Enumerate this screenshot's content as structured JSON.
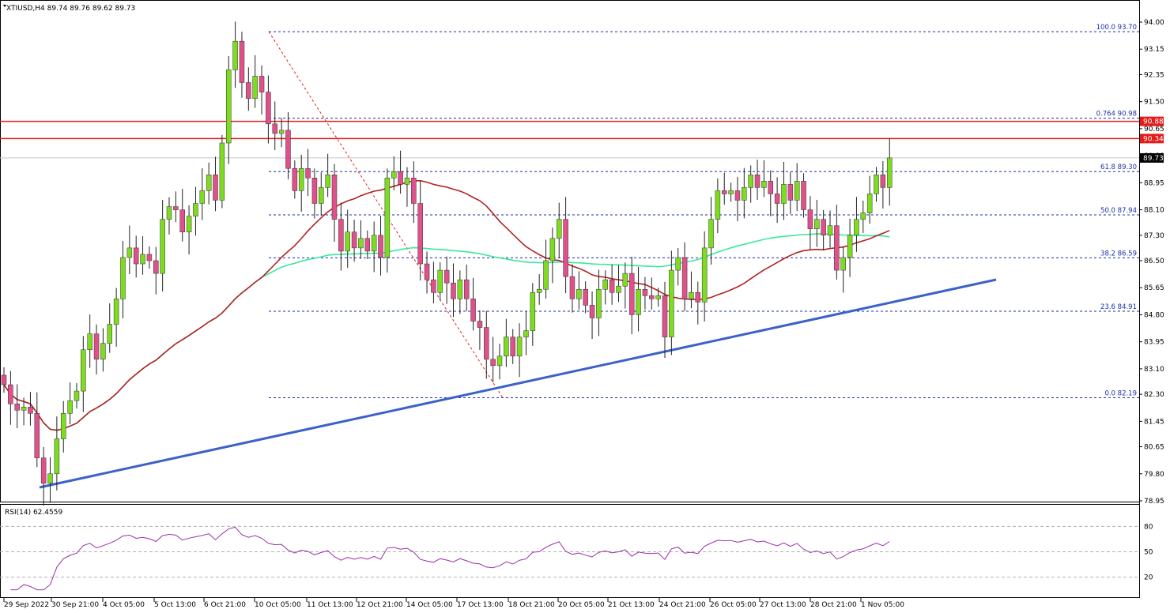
{
  "header": {
    "symbol_line": "XTIUSD,H4  89.74 89.76 89.62 89.73",
    "indicator_label": "RSI(14) 62.4559"
  },
  "colors": {
    "bull": "#7ddc1f",
    "bear": "#e0508a",
    "ma_fast": "#b22222",
    "ma_slow": "#3ce89a",
    "trendline": "#3a62c8",
    "resistance": "#e31b1b",
    "fib": "#1a2fa8",
    "rsi": "#9c2ea8"
  },
  "chart_data": [
    {
      "type": "candlestick",
      "symbol": "XTIUSD",
      "timeframe": "H4",
      "ylim": [
        78.95,
        94.0
      ],
      "y_ticks": [
        "94.00",
        "93.15",
        "92.35",
        "91.50",
        "90.65",
        "89.80",
        "88.95",
        "88.10",
        "87.30",
        "86.50",
        "85.65",
        "84.80",
        "83.95",
        "83.10",
        "82.30",
        "81.45",
        "80.65",
        "79.80",
        "78.95"
      ],
      "x_ticks": [
        "29 Sep 2022",
        "30 Sep 21:00",
        "4 Oct 05:00",
        "5 Oct 13:00",
        "6 Oct 21:00",
        "10 Oct 05:00",
        "11 Oct 13:00",
        "12 Oct 21:00",
        "14 Oct 05:00",
        "17 Oct 13:00",
        "18 Oct 21:00",
        "20 Oct 05:00",
        "21 Oct 13:00",
        "24 Oct 21:00",
        "26 Oct 05:00",
        "27 Oct 13:00",
        "28 Oct 21:00",
        "1 Nov 05:00"
      ],
      "closes": [
        82.6,
        82.0,
        81.8,
        81.9,
        81.7,
        80.3,
        79.5,
        79.8,
        80.9,
        81.7,
        82.1,
        82.4,
        83.7,
        84.2,
        83.4,
        83.9,
        84.5,
        85.3,
        86.6,
        86.9,
        86.4,
        86.7,
        86.5,
        86.1,
        87.8,
        88.2,
        88.1,
        87.4,
        87.9,
        88.3,
        88.7,
        89.2,
        88.4,
        90.2,
        92.5,
        93.4,
        92.1,
        91.6,
        92.3,
        91.8,
        90.8,
        90.5,
        90.6,
        89.4,
        88.7,
        89.4,
        89.1,
        88.3,
        88.8,
        89.2,
        87.8,
        86.8,
        87.4,
        86.9,
        87.2,
        86.8,
        87.3,
        86.6,
        89.1,
        89.3,
        88.9,
        89.1,
        88.3,
        86.4,
        85.9,
        85.5,
        86.2,
        85.8,
        85.3,
        85.9,
        85.3,
        84.6,
        84.4,
        83.4,
        83.2,
        83.5,
        84.1,
        83.5,
        84.1,
        84.3,
        85.5,
        85.6,
        86.5,
        87.2,
        87.8,
        86.0,
        85.3,
        85.6,
        85.1,
        84.7,
        85.6,
        85.9,
        85.5,
        85.7,
        86.1,
        84.8,
        85.6,
        85.4,
        85.3,
        85.4,
        84.1,
        86.2,
        86.6,
        85.3,
        85.5,
        85.2,
        86.9,
        87.8,
        88.7,
        88.6,
        88.7,
        88.4,
        88.8,
        89.2,
        88.8,
        89.0,
        88.6,
        88.3,
        88.9,
        88.4,
        89.0,
        88.1,
        87.5,
        87.8,
        87.3,
        87.6,
        86.2,
        86.6,
        87.3,
        87.8,
        88.0,
        88.6,
        89.2,
        88.8,
        89.73
      ],
      "fib_levels": [
        {
          "ratio": "100.0",
          "price": "93.70",
          "value": 93.7
        },
        {
          "ratio": "0.764",
          "price": "90.98",
          "value": 90.98
        },
        {
          "ratio": "61.8",
          "price": "89.30",
          "value": 89.3
        },
        {
          "ratio": "50.0",
          "price": "87.94",
          "value": 87.94
        },
        {
          "ratio": "38.2",
          "price": "86.59",
          "value": 86.59
        },
        {
          "ratio": "23.6",
          "price": "84.91",
          "value": 84.91
        },
        {
          "ratio": "0.0",
          "price": "82.19",
          "value": 82.19
        }
      ],
      "resistance_levels": [
        90.88,
        90.34
      ],
      "price_labels": [
        {
          "text": "90.88",
          "value": 90.88,
          "style": "red"
        },
        {
          "text": "90.34",
          "value": 90.34,
          "style": "red"
        },
        {
          "text": "89.73",
          "value": 89.73,
          "style": "black"
        }
      ],
      "current_price": 89.73
    },
    {
      "type": "line",
      "name": "RSI(14)",
      "ylim": [
        0,
        100
      ],
      "y_ticks": [
        80,
        50,
        20
      ],
      "last_value": 62.4559
    }
  ]
}
